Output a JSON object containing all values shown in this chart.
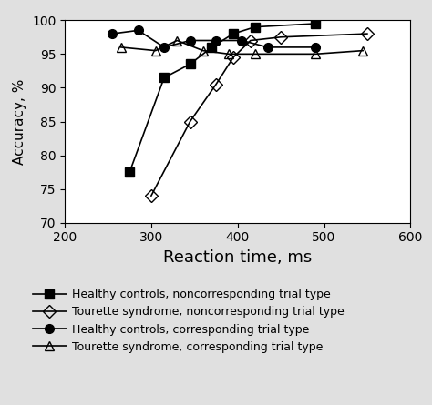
{
  "title": "",
  "xlabel": "Reaction time, ms",
  "ylabel": "Accuracy, %",
  "xlim": [
    200,
    600
  ],
  "ylim": [
    70,
    100
  ],
  "xticks": [
    200,
    300,
    400,
    500,
    600
  ],
  "yticks": [
    70,
    75,
    80,
    85,
    90,
    95,
    100
  ],
  "series": [
    {
      "label": "Healthy controls, noncorresponding trial type",
      "x": [
        275,
        315,
        345,
        370,
        395,
        420,
        490
      ],
      "y": [
        77.5,
        91.5,
        93.5,
        96.0,
        98.0,
        99.0,
        99.5
      ],
      "marker": "s",
      "fillstyle": "full",
      "color": "black",
      "markersize": 7,
      "linewidth": 1.2
    },
    {
      "label": "Tourette syndrome, noncorresponding trial type",
      "x": [
        300,
        345,
        375,
        395,
        415,
        450,
        550
      ],
      "y": [
        74.0,
        85.0,
        90.5,
        94.5,
        97.0,
        97.5,
        98.0
      ],
      "marker": "D",
      "fillstyle": "none",
      "color": "black",
      "markersize": 7,
      "linewidth": 1.2
    },
    {
      "label": "Healthy controls, corresponding trial type",
      "x": [
        255,
        285,
        315,
        345,
        375,
        405,
        435,
        490
      ],
      "y": [
        98.0,
        98.5,
        96.0,
        97.0,
        97.0,
        97.0,
        96.0,
        96.0
      ],
      "marker": "o",
      "fillstyle": "full",
      "color": "black",
      "markersize": 7,
      "linewidth": 1.2
    },
    {
      "label": "Tourette syndrome, corresponding trial type",
      "x": [
        265,
        305,
        330,
        360,
        390,
        420,
        490,
        545
      ],
      "y": [
        96.0,
        95.5,
        97.0,
        95.5,
        95.0,
        95.0,
        95.0,
        95.5
      ],
      "marker": "^",
      "fillstyle": "none",
      "color": "black",
      "markersize": 7,
      "linewidth": 1.2
    }
  ],
  "outer_bg": "#e0e0e0",
  "inner_bg": "#ffffff",
  "legend_fontsize": 9,
  "xlabel_fontsize": 13,
  "ylabel_fontsize": 11,
  "tick_fontsize": 10
}
